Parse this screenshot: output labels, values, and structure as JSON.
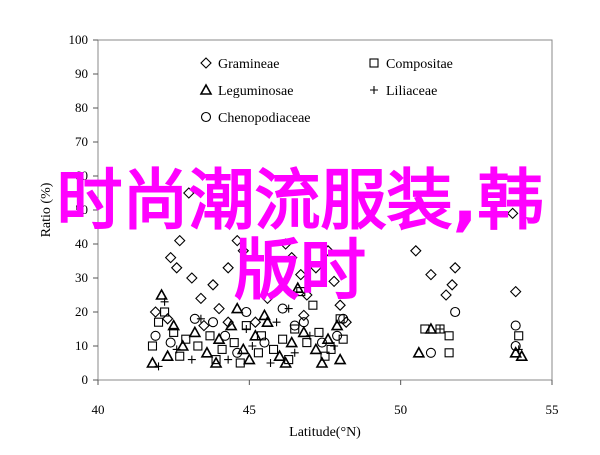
{
  "chart_data": {
    "type": "scatter",
    "title": "",
    "xlabel": "Latitude(°N)",
    "ylabel": "Ratio (%)",
    "xlim": [
      40,
      55
    ],
    "ylim": [
      0,
      100
    ],
    "xticks": [
      40,
      45,
      50,
      55
    ],
    "yticks": [
      0,
      10,
      20,
      30,
      40,
      50,
      60,
      70,
      80,
      90,
      100
    ],
    "grid": false,
    "legend_position": "top-center",
    "series": [
      {
        "name": "Gramineae",
        "marker": "diamond",
        "points": [
          [
            43.0,
            55
          ],
          [
            42.7,
            41
          ],
          [
            42.4,
            36
          ],
          [
            42.6,
            33
          ],
          [
            43.1,
            30
          ],
          [
            43.8,
            28
          ],
          [
            43.4,
            24
          ],
          [
            44.0,
            21
          ],
          [
            44.3,
            17
          ],
          [
            45.2,
            17
          ],
          [
            44.6,
            41
          ],
          [
            44.8,
            38
          ],
          [
            44.3,
            33
          ],
          [
            46.2,
            40
          ],
          [
            46.4,
            36
          ],
          [
            46.7,
            31
          ],
          [
            47.6,
            38
          ],
          [
            47.2,
            33
          ],
          [
            47.8,
            29
          ],
          [
            48.0,
            22
          ],
          [
            48.2,
            17
          ],
          [
            41.9,
            20
          ],
          [
            42.3,
            18
          ],
          [
            43.5,
            16
          ],
          [
            45.6,
            24
          ],
          [
            46.9,
            25
          ],
          [
            50.5,
            38
          ],
          [
            51.0,
            31
          ],
          [
            51.5,
            25
          ],
          [
            51.8,
            33
          ],
          [
            51.7,
            28
          ],
          [
            53.8,
            26
          ],
          [
            53.7,
            49
          ],
          [
            46.8,
            19
          ]
        ]
      },
      {
        "name": "Compositae",
        "marker": "square",
        "points": [
          [
            42.0,
            17
          ],
          [
            42.2,
            20
          ],
          [
            42.5,
            14
          ],
          [
            42.9,
            12
          ],
          [
            43.3,
            10
          ],
          [
            43.7,
            13
          ],
          [
            44.1,
            9
          ],
          [
            44.5,
            11
          ],
          [
            44.9,
            16
          ],
          [
            45.4,
            13
          ],
          [
            45.8,
            9
          ],
          [
            46.1,
            12
          ],
          [
            46.5,
            15
          ],
          [
            46.9,
            11
          ],
          [
            47.3,
            14
          ],
          [
            47.7,
            9
          ],
          [
            48.1,
            12
          ],
          [
            41.8,
            10
          ],
          [
            42.7,
            7
          ],
          [
            43.9,
            6
          ],
          [
            44.7,
            5
          ],
          [
            45.3,
            8
          ],
          [
            46.3,
            6
          ],
          [
            47.5,
            7
          ],
          [
            46.7,
            26
          ],
          [
            47.1,
            22
          ],
          [
            50.8,
            15
          ],
          [
            51.3,
            15
          ],
          [
            51.6,
            13
          ],
          [
            51.6,
            8
          ],
          [
            53.9,
            13
          ],
          [
            48.0,
            18
          ]
        ]
      },
      {
        "name": "Leguminosae",
        "marker": "triangle",
        "points": [
          [
            41.8,
            5
          ],
          [
            42.3,
            7
          ],
          [
            42.8,
            10
          ],
          [
            43.2,
            14
          ],
          [
            43.6,
            8
          ],
          [
            44.0,
            12
          ],
          [
            44.4,
            16
          ],
          [
            44.8,
            9
          ],
          [
            45.2,
            13
          ],
          [
            45.6,
            17
          ],
          [
            46.0,
            7
          ],
          [
            46.4,
            11
          ],
          [
            46.8,
            14
          ],
          [
            47.2,
            9
          ],
          [
            47.6,
            12
          ],
          [
            48.0,
            6
          ],
          [
            42.5,
            16
          ],
          [
            43.9,
            5
          ],
          [
            45.0,
            6
          ],
          [
            46.2,
            5
          ],
          [
            47.4,
            5
          ],
          [
            50.6,
            8
          ],
          [
            51.0,
            15
          ],
          [
            53.8,
            8
          ],
          [
            54.0,
            7
          ],
          [
            42.1,
            25
          ],
          [
            44.6,
            21
          ],
          [
            46.6,
            27
          ],
          [
            45.5,
            19
          ],
          [
            47.9,
            16
          ]
        ]
      },
      {
        "name": "Liliaceae",
        "marker": "plus",
        "points": [
          [
            42.0,
            4
          ],
          [
            42.6,
            9
          ],
          [
            43.4,
            18
          ],
          [
            44.3,
            6
          ],
          [
            45.1,
            10
          ],
          [
            45.9,
            17
          ],
          [
            46.5,
            8
          ],
          [
            47.0,
            13
          ],
          [
            47.8,
            10
          ],
          [
            42.2,
            23
          ],
          [
            44.9,
            15
          ],
          [
            46.3,
            21
          ],
          [
            45.7,
            5
          ],
          [
            43.1,
            6
          ],
          [
            51.3,
            15
          ],
          [
            53.9,
            9
          ]
        ]
      },
      {
        "name": "Chenopodiaceae",
        "marker": "circle",
        "points": [
          [
            42.4,
            11
          ],
          [
            43.2,
            18
          ],
          [
            44.2,
            13
          ],
          [
            44.9,
            20
          ],
          [
            45.5,
            11
          ],
          [
            46.1,
            21
          ],
          [
            46.8,
            17
          ],
          [
            47.4,
            11
          ],
          [
            48.1,
            18
          ],
          [
            43.8,
            17
          ],
          [
            46.5,
            16
          ],
          [
            41.9,
            13
          ],
          [
            44.6,
            8
          ],
          [
            47.9,
            13
          ],
          [
            51.0,
            8
          ],
          [
            53.8,
            16
          ],
          [
            53.8,
            10
          ],
          [
            51.8,
            20
          ]
        ]
      }
    ]
  },
  "overlay": {
    "line1": "时尚潮流服装,韩",
    "line2": "版时"
  }
}
